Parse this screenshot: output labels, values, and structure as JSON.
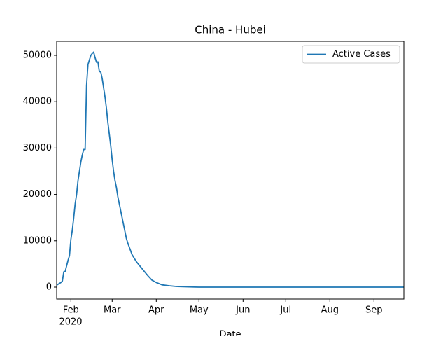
{
  "chart_data": {
    "type": "line",
    "title": "China - Hubei",
    "x_label": "Date",
    "x": [
      "2020-01-22",
      "2020-01-25",
      "2020-01-26",
      "2020-01-27",
      "2020-01-28",
      "2020-01-29",
      "2020-01-30",
      "2020-01-31",
      "2020-02-01",
      "2020-02-02",
      "2020-02-03",
      "2020-02-04",
      "2020-02-05",
      "2020-02-06",
      "2020-02-07",
      "2020-02-08",
      "2020-02-09",
      "2020-02-10",
      "2020-02-11",
      "2020-02-12",
      "2020-02-13",
      "2020-02-14",
      "2020-02-15",
      "2020-02-16",
      "2020-02-17",
      "2020-02-18",
      "2020-02-19",
      "2020-02-20",
      "2020-02-21",
      "2020-02-22",
      "2020-02-23",
      "2020-02-24",
      "2020-02-25",
      "2020-02-26",
      "2020-02-27",
      "2020-02-28",
      "2020-02-29",
      "2020-03-01",
      "2020-03-02",
      "2020-03-03",
      "2020-03-04",
      "2020-03-05",
      "2020-03-06",
      "2020-03-07",
      "2020-03-08",
      "2020-03-09",
      "2020-03-10",
      "2020-03-11",
      "2020-03-12",
      "2020-03-15",
      "2020-03-18",
      "2020-03-22",
      "2020-03-26",
      "2020-03-29",
      "2020-04-01",
      "2020-04-05",
      "2020-04-10",
      "2020-04-15",
      "2020-04-20",
      "2020-04-28",
      "2020-05-01",
      "2020-09-22"
    ],
    "series": [
      {
        "name": "Active Cases",
        "color": "#1f77b4",
        "values": [
          444,
          1000,
          1300,
          3300,
          3400,
          4600,
          5800,
          6800,
          10300,
          12300,
          15000,
          18000,
          20000,
          23000,
          25000,
          27000,
          28500,
          29700,
          29700,
          43500,
          48000,
          49000,
          50000,
          50400,
          50700,
          49500,
          48500,
          48600,
          46500,
          46400,
          45000,
          43000,
          41000,
          38500,
          35500,
          33000,
          30500,
          27500,
          25000,
          23000,
          21500,
          19500,
          18000,
          16500,
          15000,
          13500,
          12000,
          10500,
          9500,
          7000,
          5500,
          4000,
          2500,
          1500,
          1000,
          500,
          300,
          150,
          100,
          20,
          0,
          0
        ]
      }
    ],
    "xlim": [
      "2020-01-22",
      "2020-09-22"
    ],
    "xticks": [
      {
        "value": "2020-02-01",
        "label": "Feb"
      },
      {
        "value": "2020-03-01",
        "label": "Mar"
      },
      {
        "value": "2020-04-01",
        "label": "Apr"
      },
      {
        "value": "2020-05-01",
        "label": "May"
      },
      {
        "value": "2020-06-01",
        "label": "Jun"
      },
      {
        "value": "2020-07-01",
        "label": "Jul"
      },
      {
        "value": "2020-08-01",
        "label": "Aug"
      },
      {
        "value": "2020-09-01",
        "label": "Sep"
      }
    ],
    "x_year_label": "2020",
    "ylim": [
      -2570,
      53020
    ],
    "yticks": [
      0,
      10000,
      20000,
      30000,
      40000,
      50000
    ],
    "legend": "upper right"
  }
}
